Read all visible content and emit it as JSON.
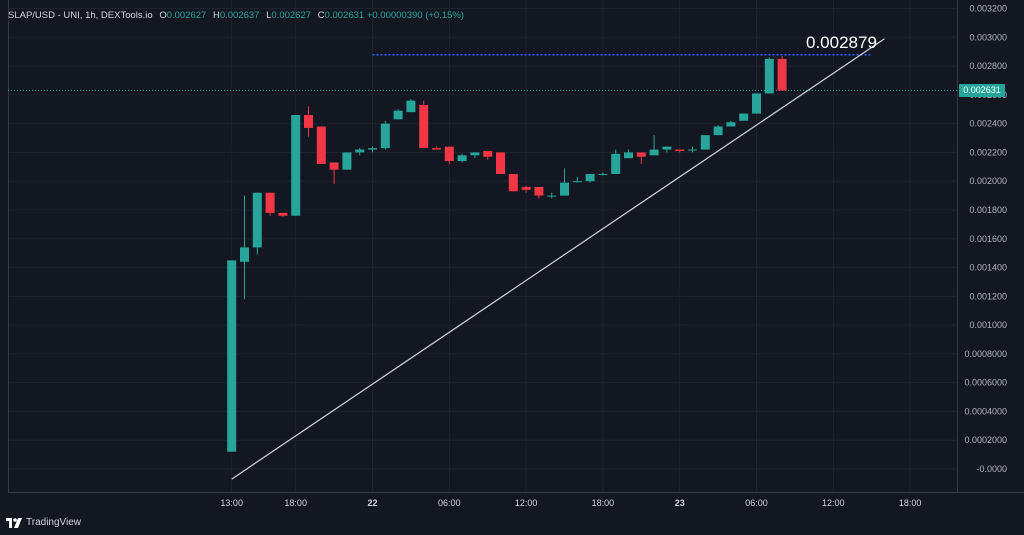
{
  "legend": {
    "symbol": "SLAP/USD - UNI, 1h, DEXTools.io",
    "o_label": "O",
    "o_value": "0.002627",
    "h_label": "H",
    "h_value": "0.002637",
    "l_label": "L",
    "l_value": "0.002627",
    "c_label": "C",
    "c_value": "0.002631",
    "change": "+0.00000390 (+0.15%)"
  },
  "annotation_text": "0.002879",
  "last_price_label": "0.002631",
  "footer": {
    "brand": "TradingView"
  },
  "colors": {
    "background": "#131722",
    "up": "#26a69a",
    "down": "#f23645",
    "trendline": "#d1d4dc",
    "target_line": "#2962ff"
  },
  "chart_data": {
    "type": "candlestick",
    "timeframe": "1h",
    "y_range": [
      -0.0001,
      0.0032
    ],
    "y_ticks": [
      {
        "value": 0.0032,
        "label": "0.003200"
      },
      {
        "value": 0.003,
        "label": "0.003000"
      },
      {
        "value": 0.0028,
        "label": "0.002800"
      },
      {
        "value": 0.0026,
        "label": "0.002600"
      },
      {
        "value": 0.0024,
        "label": "0.002400"
      },
      {
        "value": 0.0022,
        "label": "0.002200"
      },
      {
        "value": 0.002,
        "label": "0.002000"
      },
      {
        "value": 0.0018,
        "label": "0.001800"
      },
      {
        "value": 0.0016,
        "label": "0.001600"
      },
      {
        "value": 0.0014,
        "label": "0.001400"
      },
      {
        "value": 0.0012,
        "label": "0.001200"
      },
      {
        "value": 0.001,
        "label": "0.001000"
      },
      {
        "value": 0.0008,
        "label": "0.0008000"
      },
      {
        "value": 0.0006,
        "label": "0.0006000"
      },
      {
        "value": 0.0004,
        "label": "0.0004000"
      },
      {
        "value": 0.0002,
        "label": "0.0002000"
      },
      {
        "value": 0.0,
        "label": "-0.0000"
      }
    ],
    "x_ticks": [
      {
        "hour": 13,
        "label": "13:00",
        "bold": false
      },
      {
        "hour": 18,
        "label": "18:00",
        "bold": false
      },
      {
        "hour": 24,
        "label": "22",
        "bold": true
      },
      {
        "hour": 30,
        "label": "06:00",
        "bold": false
      },
      {
        "hour": 36,
        "label": "12:00",
        "bold": false
      },
      {
        "hour": 42,
        "label": "18:00",
        "bold": false
      },
      {
        "hour": 48,
        "label": "23",
        "bold": true
      },
      {
        "hour": 54,
        "label": "06:00",
        "bold": false
      },
      {
        "hour": 60,
        "label": "12:00",
        "bold": false
      },
      {
        "hour": 66,
        "label": "18:00",
        "bold": false
      }
    ],
    "candles": [
      {
        "hour": 13,
        "o": 0.00012,
        "h": 0.00145,
        "l": 0.00012,
        "c": 0.00145
      },
      {
        "hour": 14,
        "o": 0.00144,
        "h": 0.0019,
        "l": 0.00118,
        "c": 0.00154
      },
      {
        "hour": 15,
        "o": 0.00154,
        "h": 0.00192,
        "l": 0.00149,
        "c": 0.00192
      },
      {
        "hour": 16,
        "o": 0.00192,
        "h": 0.00192,
        "l": 0.00176,
        "c": 0.00178
      },
      {
        "hour": 17,
        "o": 0.00178,
        "h": 0.00178,
        "l": 0.00175,
        "c": 0.00176
      },
      {
        "hour": 18,
        "o": 0.00176,
        "h": 0.00246,
        "l": 0.00176,
        "c": 0.00246
      },
      {
        "hour": 19,
        "o": 0.00246,
        "h": 0.00252,
        "l": 0.00231,
        "c": 0.00237
      },
      {
        "hour": 20,
        "o": 0.00238,
        "h": 0.00238,
        "l": 0.00212,
        "c": 0.00212
      },
      {
        "hour": 21,
        "o": 0.00213,
        "h": 0.00213,
        "l": 0.00198,
        "c": 0.00208
      },
      {
        "hour": 22,
        "o": 0.00208,
        "h": 0.0022,
        "l": 0.00208,
        "c": 0.0022
      },
      {
        "hour": 23,
        "o": 0.0022,
        "h": 0.00223,
        "l": 0.00218,
        "c": 0.00222
      },
      {
        "hour": 24,
        "o": 0.00222,
        "h": 0.00224,
        "l": 0.0022,
        "c": 0.00223
      },
      {
        "hour": 25,
        "o": 0.00223,
        "h": 0.00242,
        "l": 0.00222,
        "c": 0.0024
      },
      {
        "hour": 26,
        "o": 0.00243,
        "h": 0.0025,
        "l": 0.00243,
        "c": 0.00249
      },
      {
        "hour": 27,
        "o": 0.00248,
        "h": 0.00257,
        "l": 0.00248,
        "c": 0.00256
      },
      {
        "hour": 28,
        "o": 0.00253,
        "h": 0.00256,
        "l": 0.00223,
        "c": 0.00223
      },
      {
        "hour": 29,
        "o": 0.00223,
        "h": 0.00224,
        "l": 0.00222,
        "c": 0.00222
      },
      {
        "hour": 30,
        "o": 0.00224,
        "h": 0.00224,
        "l": 0.00212,
        "c": 0.00214
      },
      {
        "hour": 31,
        "o": 0.00214,
        "h": 0.00219,
        "l": 0.00213,
        "c": 0.00218
      },
      {
        "hour": 32,
        "o": 0.00218,
        "h": 0.0022,
        "l": 0.00216,
        "c": 0.0022
      },
      {
        "hour": 33,
        "o": 0.00221,
        "h": 0.00221,
        "l": 0.00215,
        "c": 0.00217
      },
      {
        "hour": 34,
        "o": 0.0022,
        "h": 0.0022,
        "l": 0.00205,
        "c": 0.00205
      },
      {
        "hour": 35,
        "o": 0.00205,
        "h": 0.00205,
        "l": 0.00193,
        "c": 0.00193
      },
      {
        "hour": 36,
        "o": 0.00196,
        "h": 0.00197,
        "l": 0.00192,
        "c": 0.00194
      },
      {
        "hour": 37,
        "o": 0.00196,
        "h": 0.00196,
        "l": 0.00188,
        "c": 0.0019
      },
      {
        "hour": 38,
        "o": 0.0019,
        "h": 0.00192,
        "l": 0.00188,
        "c": 0.0019
      },
      {
        "hour": 39,
        "o": 0.0019,
        "h": 0.00209,
        "l": 0.0019,
        "c": 0.00199
      },
      {
        "hour": 40,
        "o": 0.002,
        "h": 0.00203,
        "l": 0.00199,
        "c": 0.002
      },
      {
        "hour": 41,
        "o": 0.002,
        "h": 0.00205,
        "l": 0.00199,
        "c": 0.00205
      },
      {
        "hour": 42,
        "o": 0.00205,
        "h": 0.00206,
        "l": 0.00204,
        "c": 0.00205
      },
      {
        "hour": 43,
        "o": 0.00205,
        "h": 0.00222,
        "l": 0.00205,
        "c": 0.00219
      },
      {
        "hour": 44,
        "o": 0.00216,
        "h": 0.00222,
        "l": 0.00216,
        "c": 0.0022
      },
      {
        "hour": 45,
        "o": 0.0022,
        "h": 0.0022,
        "l": 0.00212,
        "c": 0.00217
      },
      {
        "hour": 46,
        "o": 0.00218,
        "h": 0.00232,
        "l": 0.00218,
        "c": 0.00222
      },
      {
        "hour": 47,
        "o": 0.00222,
        "h": 0.00224,
        "l": 0.0022,
        "c": 0.00224
      },
      {
        "hour": 48,
        "o": 0.00222,
        "h": 0.00222,
        "l": 0.0022,
        "c": 0.00221
      },
      {
        "hour": 49,
        "o": 0.00222,
        "h": 0.00224,
        "l": 0.0022,
        "c": 0.00222
      },
      {
        "hour": 50,
        "o": 0.00222,
        "h": 0.00232,
        "l": 0.00222,
        "c": 0.00232
      },
      {
        "hour": 51,
        "o": 0.00232,
        "h": 0.00239,
        "l": 0.00232,
        "c": 0.00238
      },
      {
        "hour": 52,
        "o": 0.00238,
        "h": 0.00242,
        "l": 0.00238,
        "c": 0.00241
      },
      {
        "hour": 53,
        "o": 0.00242,
        "h": 0.00247,
        "l": 0.00242,
        "c": 0.00247
      },
      {
        "hour": 54,
        "o": 0.00247,
        "h": 0.00261,
        "l": 0.00247,
        "c": 0.00261
      },
      {
        "hour": 55,
        "o": 0.00261,
        "h": 0.00286,
        "l": 0.00261,
        "c": 0.00285
      },
      {
        "hour": 56,
        "o": 0.00285,
        "h": 0.00287,
        "l": 0.00263,
        "c": 0.00263
      }
    ],
    "trendline": {
      "from": {
        "hour": 13,
        "value": -7e-05
      },
      "to": {
        "hour": 64,
        "value": 0.00299
      }
    },
    "target_line": {
      "from_hour": 24,
      "to_hour": 63,
      "value": 0.002879
    },
    "last_price": 0.002631
  }
}
